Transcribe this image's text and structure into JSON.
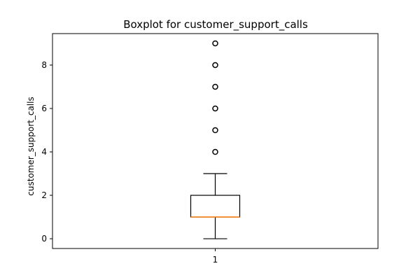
{
  "chart_data": {
    "type": "boxplot",
    "title": "Boxplot for customer_support_calls",
    "xlabel": "",
    "ylabel": "customer_support_calls",
    "categories": [
      "1"
    ],
    "ylim": [
      -0.45,
      9.45
    ],
    "yticks": [
      0,
      2,
      4,
      6,
      8
    ],
    "grid": false,
    "boxes": [
      {
        "category": "1",
        "whisker_low": 0,
        "q1": 1,
        "median": 1,
        "q3": 2,
        "whisker_high": 3,
        "outliers": [
          4,
          5,
          6,
          7,
          8,
          9
        ]
      }
    ],
    "colors": {
      "box": "#000000",
      "median": "#ff7f0e",
      "outlier": "#000000"
    }
  }
}
